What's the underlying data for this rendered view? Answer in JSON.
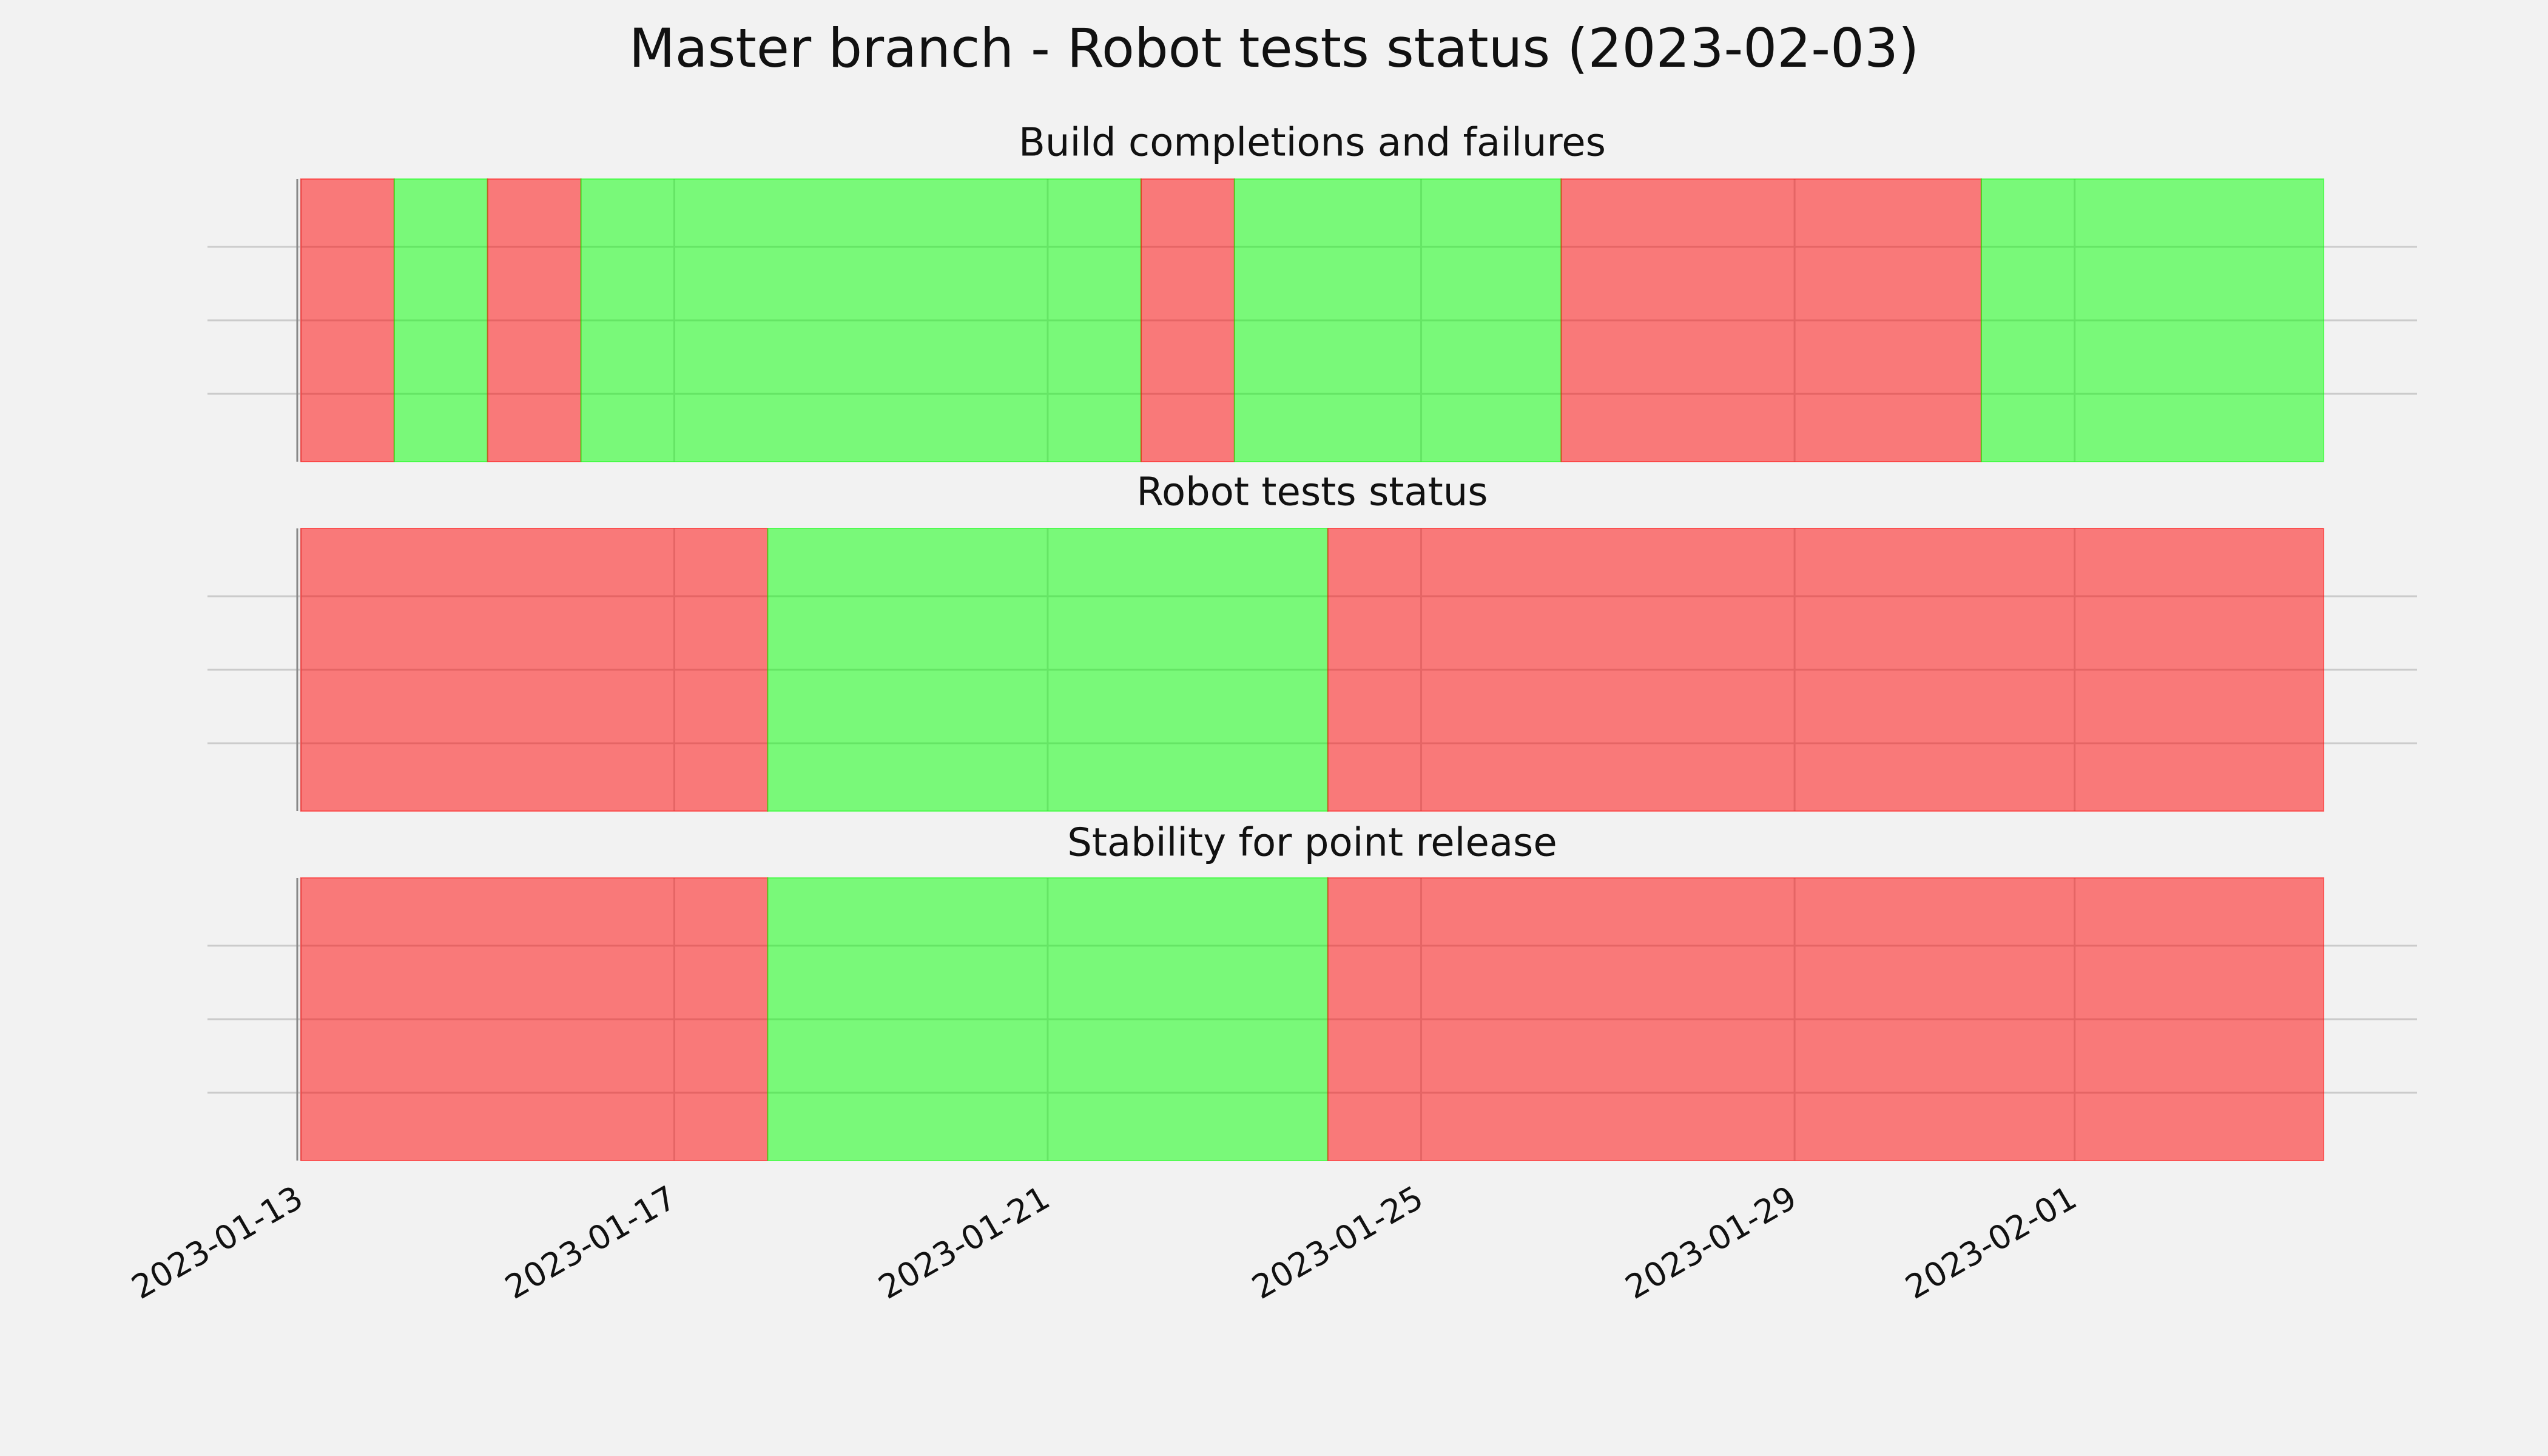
{
  "title": "Master branch - Robot tests status (2023-02-03)",
  "chart_data": [
    {
      "type": "timeline",
      "title": "Build completions and failures",
      "xlim": [
        "2023-01-12",
        "2023-02-04T16:00"
      ],
      "xticks": [
        "2023-01-13",
        "2023-01-17",
        "2023-01-21",
        "2023-01-25",
        "2023-01-29",
        "2023-02-01"
      ],
      "grid": true,
      "alpha": 0.5,
      "segments": [
        {
          "start": "2023-01-13",
          "end": "2023-01-14",
          "color": "#ff0000"
        },
        {
          "start": "2023-01-14",
          "end": "2023-01-15",
          "color": "#00ff00"
        },
        {
          "start": "2023-01-15",
          "end": "2023-01-16",
          "color": "#ff0000"
        },
        {
          "start": "2023-01-16",
          "end": "2023-01-22",
          "color": "#00ff00"
        },
        {
          "start": "2023-01-22",
          "end": "2023-01-23",
          "color": "#ff0000"
        },
        {
          "start": "2023-01-23",
          "end": "2023-01-26T12:00",
          "color": "#00ff00"
        },
        {
          "start": "2023-01-26T12:00",
          "end": "2023-01-31",
          "color": "#ff0000"
        },
        {
          "start": "2023-01-31",
          "end": "2023-02-03T16:00",
          "color": "#00ff00"
        }
      ]
    },
    {
      "type": "timeline",
      "title": "Robot tests status",
      "xlim": [
        "2023-01-12",
        "2023-02-04T16:00"
      ],
      "xticks": [
        "2023-01-13",
        "2023-01-17",
        "2023-01-21",
        "2023-01-25",
        "2023-01-29",
        "2023-02-01"
      ],
      "grid": true,
      "alpha": 0.5,
      "segments": [
        {
          "start": "2023-01-13",
          "end": "2023-01-18",
          "color": "#ff0000"
        },
        {
          "start": "2023-01-18",
          "end": "2023-01-24",
          "color": "#00ff00"
        },
        {
          "start": "2023-01-24",
          "end": "2023-02-03T16:00",
          "color": "#ff0000"
        }
      ]
    },
    {
      "type": "timeline",
      "title": "Stability for point release",
      "xlim": [
        "2023-01-12",
        "2023-02-04T16:00"
      ],
      "xticks": [
        "2023-01-13",
        "2023-01-17",
        "2023-01-21",
        "2023-01-25",
        "2023-01-29",
        "2023-02-01"
      ],
      "grid": true,
      "alpha": 0.5,
      "segments": [
        {
          "start": "2023-01-13",
          "end": "2023-01-18",
          "color": "#ff0000"
        },
        {
          "start": "2023-01-18",
          "end": "2023-01-24",
          "color": "#00ff00"
        },
        {
          "start": "2023-01-24",
          "end": "2023-02-03T16:00",
          "color": "#ff0000"
        }
      ]
    }
  ]
}
